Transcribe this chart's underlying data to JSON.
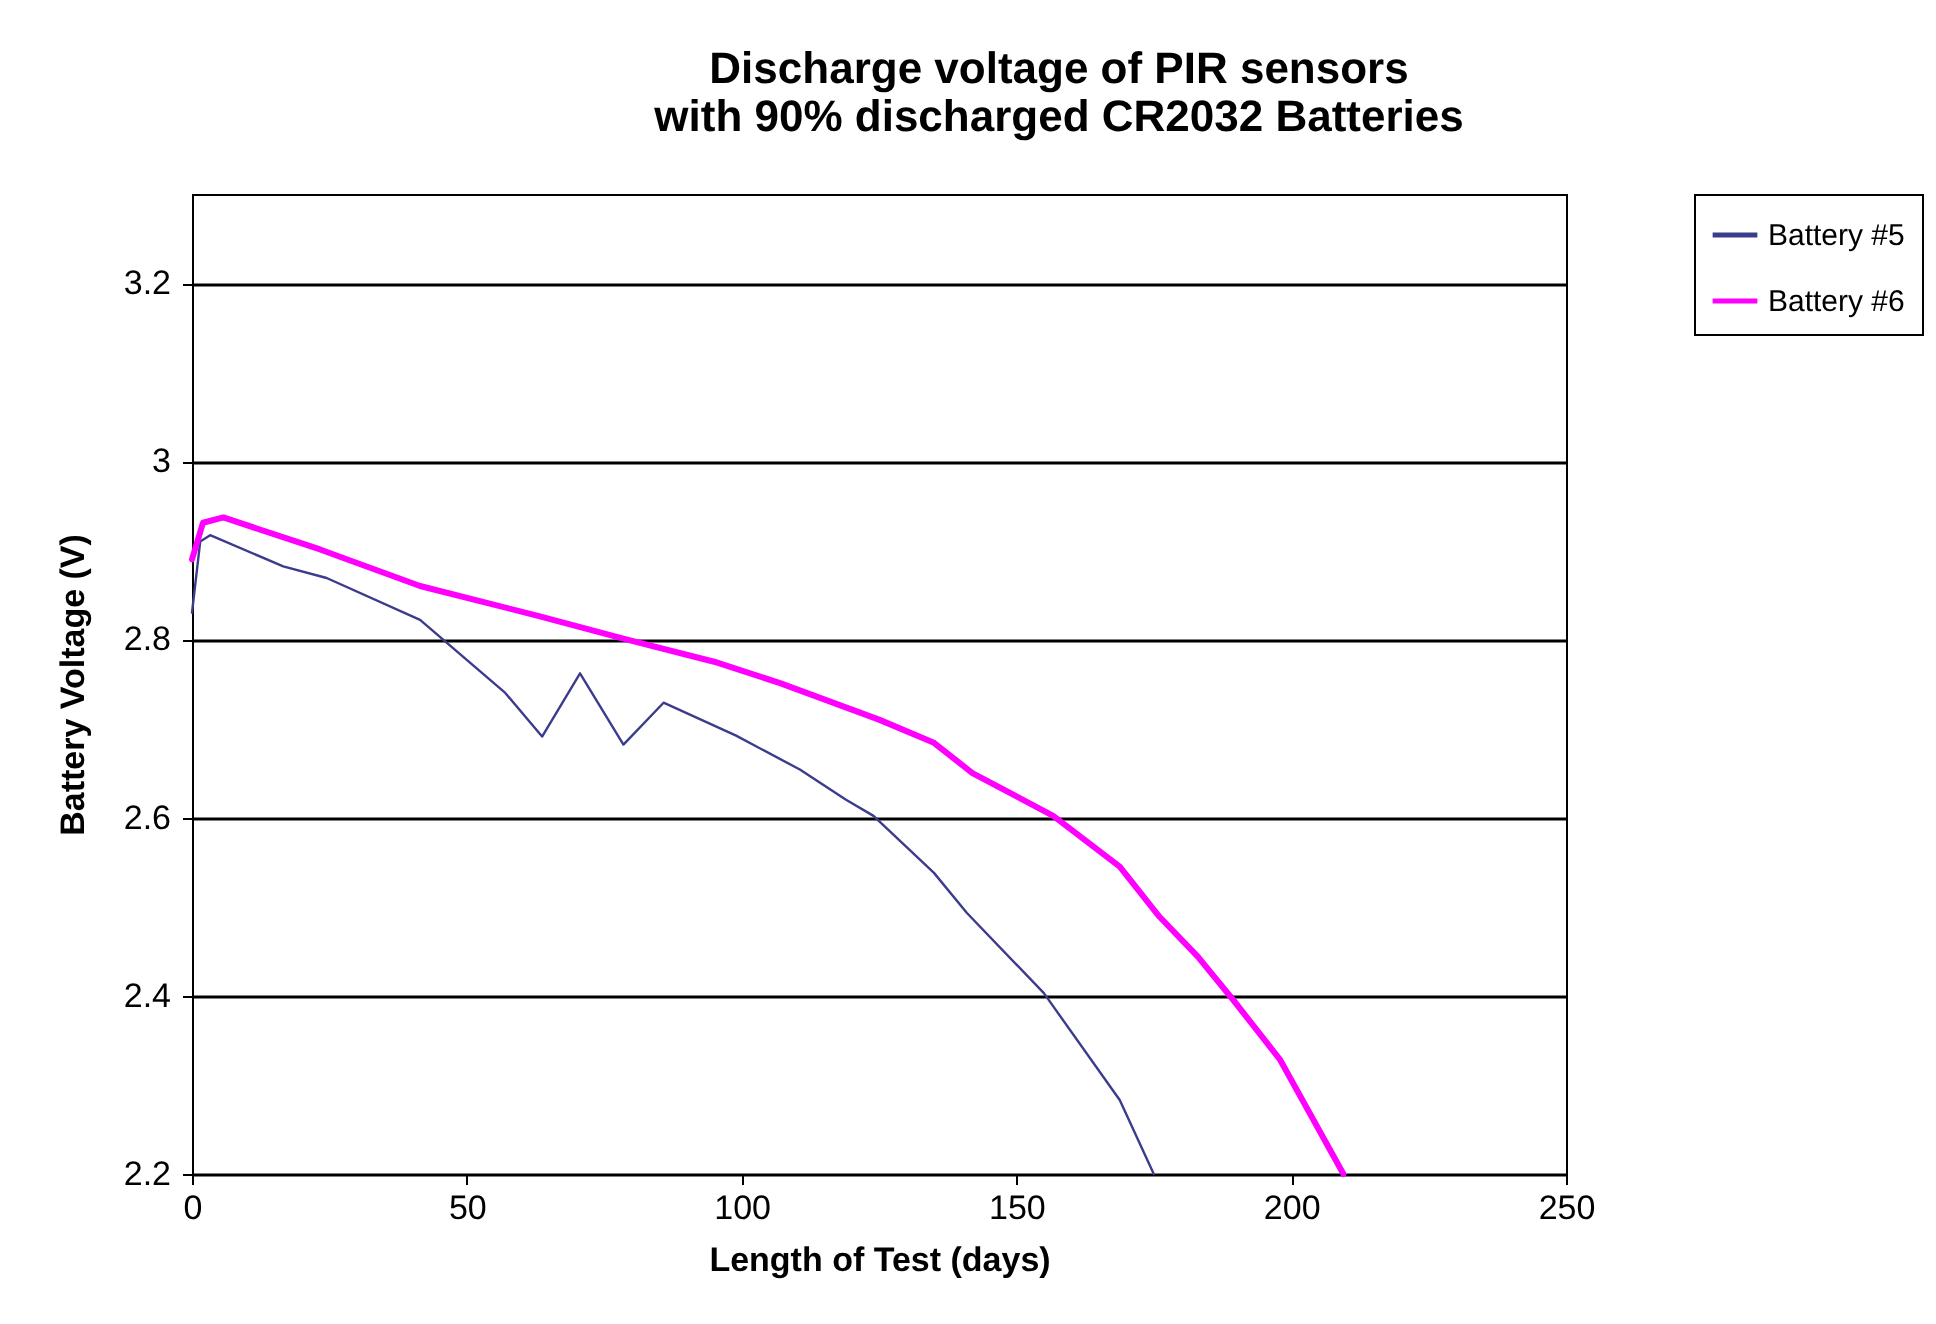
{
  "chart_data": {
    "type": "line",
    "title": "Discharge voltage of PIR sensors\nwith 90% discharged CR2032 Batteries",
    "xlabel": "Length of Test (days)",
    "ylabel": "Battery Voltage (V)",
    "xlim": [
      0,
      250
    ],
    "xticks": [
      0,
      50,
      100,
      150,
      200,
      250
    ],
    "ylim": [
      2.2,
      3.3
    ],
    "yticks": [
      2.2,
      2.4,
      2.6,
      2.8,
      3,
      3.2
    ],
    "grid": "y",
    "legend": "right",
    "marker": "none",
    "line_style": "solid",
    "series": [
      {
        "name": "Battery #5",
        "color": "#3c3c8c",
        "x": [
          0,
          1.5,
          3.3,
          16.6,
          24.5,
          41.5,
          57,
          63.7,
          70.6,
          78.5,
          85.8,
          99,
          110.6,
          119,
          124,
          135,
          141,
          155,
          168.8,
          175
        ],
        "values": [
          2.83,
          2.91,
          2.917,
          2.882,
          2.869,
          2.822,
          2.74,
          2.691,
          2.762,
          2.682,
          2.729,
          2.692,
          2.654,
          2.62,
          2.602,
          2.538,
          2.493,
          2.403,
          2.283,
          2.2
        ]
      },
      {
        "name": "Battery #6",
        "color": "#ff00ff",
        "x": [
          0,
          2,
          5.7,
          23.3,
          41.5,
          63.3,
          79,
          95,
          107,
          125,
          135,
          142,
          156.7,
          168.8,
          176,
          183,
          189.5,
          198,
          209.5
        ],
        "values": [
          2.89,
          2.931,
          2.937,
          2.901,
          2.86,
          2.826,
          2.8,
          2.775,
          2.751,
          2.71,
          2.684,
          2.65,
          2.602,
          2.545,
          2.489,
          2.444,
          2.395,
          2.328,
          2.2
        ]
      }
    ]
  }
}
